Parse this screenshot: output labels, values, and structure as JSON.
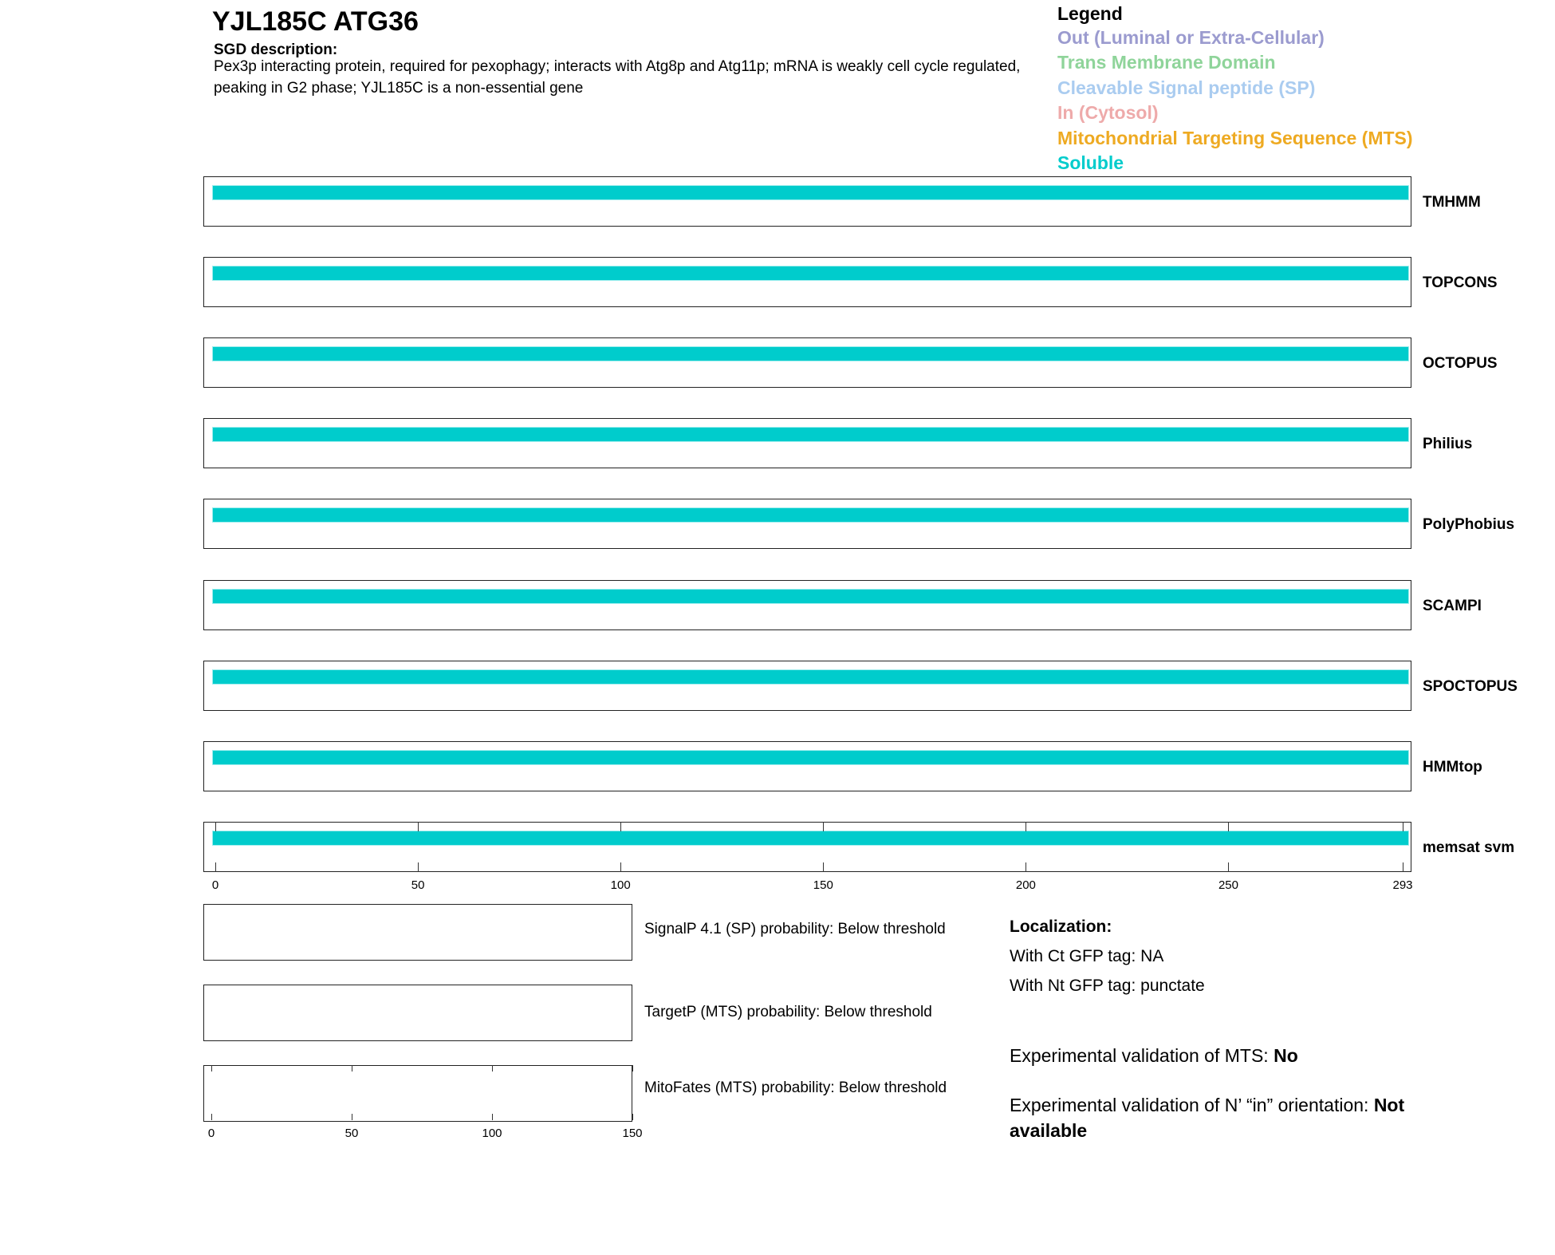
{
  "header": {
    "title": "YJL185C  ATG36",
    "sgd_heading": "SGD description:",
    "sgd_text": "Pex3p interacting protein, required for pexophagy; interacts with Atg8p and Atg11p; mRNA is weakly cell cycle regulated, peaking in G2 phase; YJL185C is a non-essential gene"
  },
  "legend": {
    "title": "Legend",
    "items": [
      {
        "label": "Out (Luminal or Extra-Cellular)",
        "color": "#9b9bcf"
      },
      {
        "label": "Trans Membrane Domain",
        "color": "#8fd49a"
      },
      {
        "label": "Cleavable Signal peptide (SP)",
        "color": "#aaccf0"
      },
      {
        "label": "In (Cytosol)",
        "color": "#eeaaaa"
      },
      {
        "label": "Mitochondrial Targeting Sequence (MTS)",
        "color": "#eeaa22"
      },
      {
        "label": "Soluble",
        "color": "#00cccc"
      }
    ]
  },
  "chart_data": {
    "type": "track",
    "xlim": [
      0,
      293
    ],
    "xticks": [
      "0",
      "50",
      "100",
      "150",
      "200",
      "250",
      "293"
    ],
    "tracks": [
      {
        "name": "TMHMM",
        "segments": [
          {
            "start": 1,
            "end": 293,
            "type": "Soluble"
          }
        ]
      },
      {
        "name": "TOPCONS",
        "segments": [
          {
            "start": 1,
            "end": 293,
            "type": "Soluble"
          }
        ]
      },
      {
        "name": "OCTOPUS",
        "segments": [
          {
            "start": 1,
            "end": 293,
            "type": "Soluble"
          }
        ]
      },
      {
        "name": "Philius",
        "segments": [
          {
            "start": 1,
            "end": 293,
            "type": "Soluble"
          }
        ]
      },
      {
        "name": "PolyPhobius",
        "segments": [
          {
            "start": 1,
            "end": 293,
            "type": "Soluble"
          }
        ]
      },
      {
        "name": "SCAMPI",
        "segments": [
          {
            "start": 1,
            "end": 293,
            "type": "Soluble"
          }
        ]
      },
      {
        "name": "SPOCTOPUS",
        "segments": [
          {
            "start": 1,
            "end": 293,
            "type": "Soluble"
          }
        ]
      },
      {
        "name": "HMMtop",
        "segments": [
          {
            "start": 1,
            "end": 293,
            "type": "Soluble"
          }
        ]
      },
      {
        "name": "memsat svm",
        "segments": [
          {
            "start": 1,
            "end": 293,
            "type": "Soluble"
          }
        ]
      }
    ],
    "small_xlim": [
      0,
      150
    ],
    "small_xticks": [
      "0",
      "50",
      "100",
      "150"
    ]
  },
  "predictions": [
    "SignalP 4.1 (SP) probability: Below threshold",
    "TargetP (MTS) probability: Below threshold",
    "MitoFates (MTS) probability: Below threshold"
  ],
  "localization": {
    "heading": "Localization:",
    "ct": "With Ct GFP tag: NA",
    "nt": "With Nt GFP tag: punctate",
    "mts_label": "Experimental validation of MTS: ",
    "mts_value": "No",
    "orient_label": "Experimental validation of N’ “in” orientation: ",
    "orient_value": "Not available"
  }
}
